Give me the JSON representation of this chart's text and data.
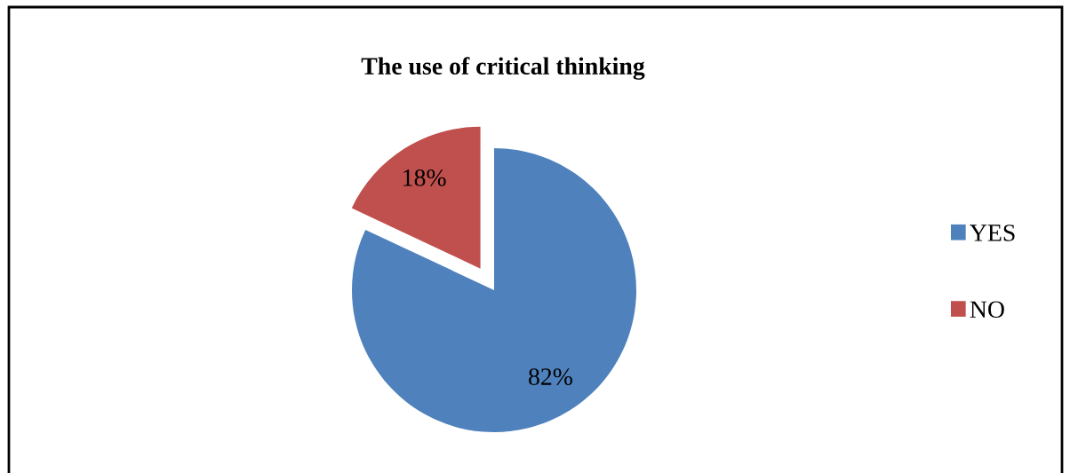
{
  "chart_data": {
    "type": "pie",
    "title": "The use of critical thinking",
    "categories": [
      "YES",
      "NO"
    ],
    "values": [
      82,
      18
    ],
    "colors": [
      "#4f81bd",
      "#c0504d"
    ],
    "value_labels": [
      "82%",
      "18%"
    ],
    "legend": "right"
  }
}
